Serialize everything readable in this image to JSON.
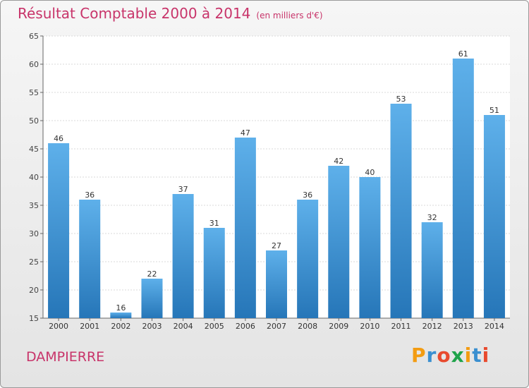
{
  "chart_data": {
    "type": "bar",
    "title": "Résultat Comptable 2000 à 2014",
    "subtitle": "(en milliers d'€)",
    "categories": [
      "2000",
      "2001",
      "2002",
      "2003",
      "2004",
      "2005",
      "2006",
      "2007",
      "2008",
      "2009",
      "2010",
      "2011",
      "2012",
      "2013",
      "2014"
    ],
    "values": [
      46,
      36,
      16,
      22,
      37,
      31,
      47,
      27,
      36,
      42,
      40,
      53,
      32,
      61,
      51
    ],
    "ylim": [
      15,
      65
    ],
    "yticks": [
      15,
      20,
      25,
      30,
      35,
      40,
      45,
      50,
      55,
      60,
      65
    ],
    "xlabel": "",
    "ylabel": "",
    "grid": true,
    "bar_color_top": "#5eb0ea",
    "bar_color_bottom": "#2676b8"
  },
  "commune": "DAMPIERRE",
  "logo": {
    "letters": [
      "P",
      "r",
      "o",
      "x",
      "i",
      "t",
      "i"
    ],
    "colors": [
      "#f39c12",
      "#3a8fd0",
      "#e84a2e",
      "#1fa34a",
      "#f39c12",
      "#3a8fd0",
      "#e84a2e"
    ]
  }
}
